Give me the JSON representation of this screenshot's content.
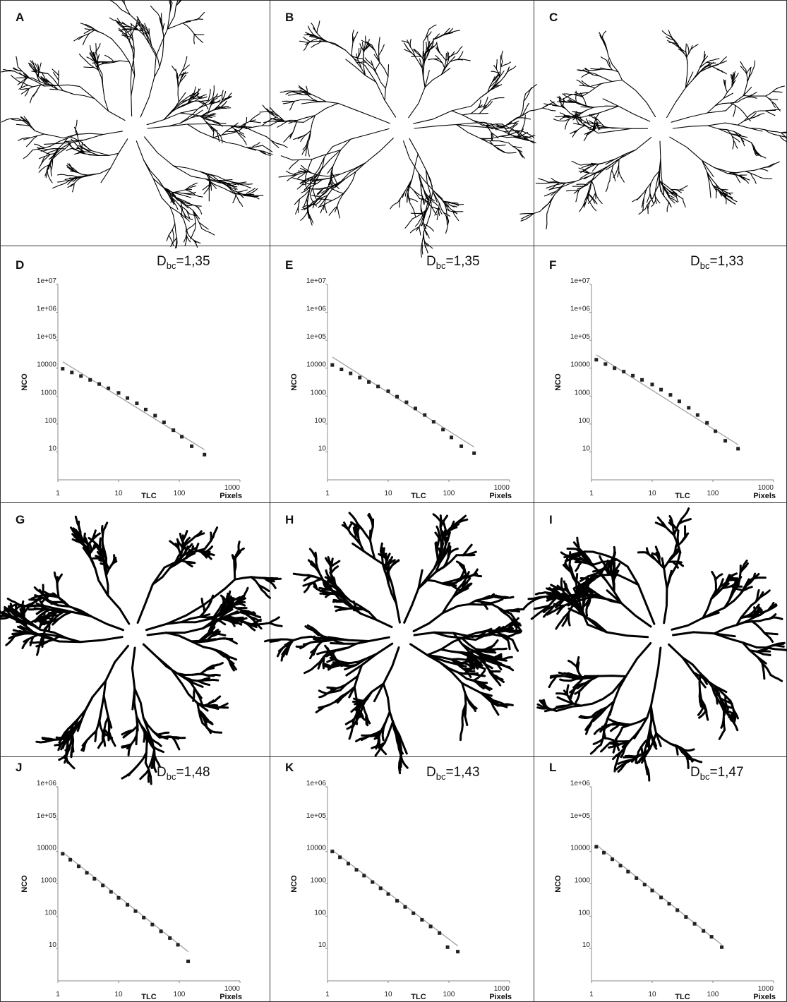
{
  "panels": [
    {
      "letter": "A"
    },
    {
      "letter": "B"
    },
    {
      "letter": "C"
    },
    {
      "letter": "G"
    },
    {
      "letter": "H"
    },
    {
      "letter": "I"
    }
  ],
  "chart_data": [
    {
      "type": "scatter",
      "letter": "D",
      "annotation": {
        "symbol": "D",
        "subscript": "bc",
        "text": "=1,35"
      },
      "xlabel": "TLC",
      "xunit": "Pixels",
      "ylabel": "NCO",
      "log_scale": true,
      "color": "#222222",
      "fit_color": "#999999",
      "x": [
        1.2,
        1.7,
        2.4,
        3.4,
        4.8,
        6.8,
        10,
        14,
        20,
        28,
        40,
        56,
        80,
        110,
        160,
        260
      ],
      "values": [
        9500,
        7000,
        5200,
        3800,
        2700,
        1900,
        1300,
        850,
        550,
        330,
        200,
        115,
        60,
        35,
        16,
        8
      ],
      "fit": {
        "x": [
          1.2,
          260
        ],
        "values": [
          17000,
          12
        ]
      },
      "xlim": [
        1,
        1000
      ],
      "ylim": [
        1,
        10000000
      ],
      "xticks": [
        1,
        10,
        100,
        1000
      ],
      "yticks": [
        10,
        100,
        1000,
        10000,
        {
          "value": 100000,
          "label": "1e+05"
        },
        {
          "value": 1000000,
          "label": "1e+06"
        },
        {
          "value": 10000000,
          "label": "1e+07"
        }
      ]
    },
    {
      "type": "scatter",
      "letter": "E",
      "annotation": {
        "symbol": "D",
        "subscript": "bc",
        "text": "=1,35"
      },
      "xlabel": "TLC",
      "xunit": "Pixels",
      "ylabel": "NCO",
      "log_scale": true,
      "color": "#222222",
      "fit_color": "#999999",
      "x": [
        1.2,
        1.7,
        2.4,
        3.4,
        4.8,
        6.8,
        10,
        14,
        20,
        28,
        40,
        56,
        80,
        110,
        160,
        260
      ],
      "values": [
        13000,
        9000,
        6500,
        4600,
        3200,
        2200,
        1500,
        950,
        600,
        360,
        210,
        120,
        63,
        33,
        16,
        9
      ],
      "fit": {
        "x": [
          1.2,
          260
        ],
        "values": [
          25000,
          15
        ]
      },
      "xlim": [
        1,
        1000
      ],
      "ylim": [
        1,
        10000000
      ],
      "xticks": [
        1,
        10,
        100,
        1000
      ],
      "yticks": [
        10,
        100,
        1000,
        10000,
        {
          "value": 100000,
          "label": "1e+05"
        },
        {
          "value": 1000000,
          "label": "1e+06"
        },
        {
          "value": 10000000,
          "label": "1e+07"
        }
      ]
    },
    {
      "type": "scatter",
      "letter": "F",
      "annotation": {
        "symbol": "D",
        "subscript": "bc",
        "text": "=1,33"
      },
      "xlabel": "TLC",
      "xunit": "Pixels",
      "ylabel": "NCO",
      "log_scale": true,
      "color": "#222222",
      "fit_color": "#999999",
      "x": [
        1.2,
        1.7,
        2.4,
        3.4,
        4.8,
        6.8,
        10,
        14,
        20,
        28,
        40,
        56,
        80,
        110,
        160,
        260
      ],
      "values": [
        20000,
        14000,
        10000,
        7500,
        5400,
        3800,
        2600,
        1700,
        1100,
        650,
        380,
        210,
        110,
        55,
        25,
        13
      ],
      "fit": {
        "x": [
          1.2,
          260
        ],
        "values": [
          30000,
          18
        ]
      },
      "xlim": [
        1,
        1000
      ],
      "ylim": [
        1,
        10000000
      ],
      "xticks": [
        1,
        10,
        100,
        1000
      ],
      "yticks": [
        10,
        100,
        1000,
        10000,
        {
          "value": 100000,
          "label": "1e+05"
        },
        {
          "value": 1000000,
          "label": "1e+06"
        },
        {
          "value": 10000000,
          "label": "1e+07"
        }
      ]
    },
    {
      "type": "scatter",
      "letter": "J",
      "annotation": {
        "symbol": "D",
        "subscript": "bc",
        "text": "=1,48"
      },
      "xlabel": "TLC",
      "xunit": "Pixels",
      "ylabel": "NCO",
      "log_scale": true,
      "color": "#222222",
      "fit_color": "#999999",
      "x": [
        1.2,
        1.6,
        2.2,
        3,
        4,
        5.5,
        7.5,
        10,
        14,
        19,
        26,
        36,
        50,
        70,
        95,
        140
      ],
      "values": [
        8500,
        5550,
        3470,
        2190,
        1430,
        893,
        564,
        369,
        224,
        143,
        90,
        55,
        34,
        21,
        13,
        4
      ],
      "fit": {
        "x": [
          1.2,
          140
        ],
        "values": [
          9500,
          8
        ]
      },
      "xlim": [
        1,
        1000
      ],
      "ylim": [
        1,
        1000000
      ],
      "xticks": [
        1,
        10,
        100,
        1000
      ],
      "yticks": [
        10,
        100,
        1000,
        10000,
        {
          "value": 100000,
          "label": "1e+05"
        },
        {
          "value": 1000000,
          "label": "1e+06"
        }
      ]
    },
    {
      "type": "scatter",
      "letter": "K",
      "annotation": {
        "symbol": "D",
        "subscript": "bc",
        "text": "=1,43"
      },
      "xlabel": "TLC",
      "xunit": "Pixels",
      "ylabel": "NCO",
      "log_scale": true,
      "color": "#222222",
      "fit_color": "#999999",
      "x": [
        1.2,
        1.6,
        2.2,
        3,
        4,
        5.5,
        7.5,
        10,
        14,
        19,
        26,
        36,
        50,
        70,
        95,
        140
      ],
      "values": [
        10000,
        6620,
        4200,
        2700,
        1790,
        1130,
        727,
        482,
        298,
        193,
        123,
        77,
        48,
        30,
        11,
        8
      ],
      "fit": {
        "x": [
          1.2,
          140
        ],
        "values": [
          11000,
          12
        ]
      },
      "xlim": [
        1,
        1000
      ],
      "ylim": [
        1,
        1000000
      ],
      "xticks": [
        1,
        10,
        100,
        1000
      ],
      "yticks": [
        10,
        100,
        1000,
        10000,
        {
          "value": 100000,
          "label": "1e+05"
        },
        {
          "value": 1000000,
          "label": "1e+06"
        }
      ]
    },
    {
      "type": "scatter",
      "letter": "L",
      "annotation": {
        "symbol": "D",
        "subscript": "bc",
        "text": "=1,47"
      },
      "xlabel": "TLC",
      "xunit": "Pixels",
      "ylabel": "NCO",
      "log_scale": true,
      "color": "#222222",
      "fit_color": "#999999",
      "x": [
        1.2,
        1.6,
        2.2,
        3,
        4,
        5.5,
        7.5,
        10,
        14,
        19,
        26,
        36,
        50,
        70,
        95,
        140
      ],
      "values": [
        14000,
        9170,
        5740,
        3640,
        2380,
        1500,
        945,
        620,
        378,
        241,
        153,
        94,
        58,
        35,
        23,
        11
      ],
      "fit": {
        "x": [
          1.2,
          140
        ],
        "values": [
          16000,
          13
        ]
      },
      "xlim": [
        1,
        1000
      ],
      "ylim": [
        1,
        1000000
      ],
      "xticks": [
        1,
        10,
        100,
        1000
      ],
      "yticks": [
        10,
        100,
        1000,
        10000,
        {
          "value": 100000,
          "label": "1e+05"
        },
        {
          "value": 1000000,
          "label": "1e+06"
        }
      ]
    }
  ]
}
